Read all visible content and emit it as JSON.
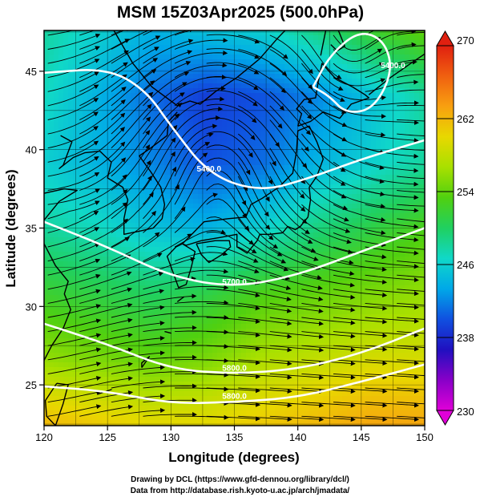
{
  "chart_data": {
    "type": "heatmap",
    "title": "MSM 15Z03Apr2025 (500.0hPa)",
    "xlabel": "Longitude (degrees)",
    "ylabel": "Latitude  (degrees)",
    "xlim": [
      120,
      150
    ],
    "ylim": [
      22.4,
      47.6
    ],
    "x_ticks": [
      120,
      125,
      130,
      135,
      140,
      145,
      150
    ],
    "y_ticks": [
      25,
      30,
      35,
      40,
      45
    ],
    "colorbar": {
      "min": 230,
      "max": 270,
      "ticks": [
        230,
        238,
        246,
        254,
        262,
        270
      ],
      "colors": [
        "#e000d8",
        "#8800c8",
        "#2010c0",
        "#1050e0",
        "#00a8e8",
        "#10d8c8",
        "#20d060",
        "#50d010",
        "#a8e000",
        "#e8d800",
        "#f8a010",
        "#f06010",
        "#e02010"
      ]
    },
    "temperature_field_K": [
      [
        262,
        261,
        260,
        260,
        261,
        262,
        263,
        263
      ],
      [
        256,
        255,
        254,
        255,
        257,
        258,
        259,
        259
      ],
      [
        252,
        251,
        250,
        251,
        253,
        254,
        255,
        256
      ],
      [
        248,
        247,
        245,
        244,
        246,
        249,
        251,
        253
      ],
      [
        246,
        244,
        242,
        240,
        241,
        244,
        246,
        248
      ],
      [
        247,
        244,
        241,
        239,
        240,
        242,
        245,
        248
      ],
      [
        248,
        246,
        244,
        245,
        246,
        249,
        252,
        254
      ]
    ],
    "contour_labels": [
      "5400.0",
      "5700.0",
      "5800.0"
    ],
    "contours": [
      {
        "label": "5800.0",
        "points": [
          [
            120,
            24.9
          ],
          [
            125,
            24.6
          ],
          [
            130,
            23.8
          ],
          [
            135,
            23.9
          ],
          [
            140,
            24.2
          ],
          [
            145,
            25.2
          ],
          [
            150,
            26.3
          ]
        ]
      },
      {
        "label": "5800.0",
        "points": [
          [
            120,
            28.9
          ],
          [
            125,
            27.6
          ],
          [
            130,
            26.0
          ],
          [
            135,
            25.7
          ],
          [
            140,
            26.0
          ],
          [
            145,
            27.0
          ],
          [
            150,
            28.6
          ]
        ]
      },
      {
        "label": "5700.0",
        "points": [
          [
            120,
            35.4
          ],
          [
            125,
            33.8
          ],
          [
            130,
            31.9
          ],
          [
            135,
            31.2
          ],
          [
            140,
            32.0
          ],
          [
            145,
            33.5
          ],
          [
            150,
            35.0
          ]
        ]
      },
      {
        "label": "5400.0",
        "points": [
          [
            120,
            44.9
          ],
          [
            125,
            45.2
          ],
          [
            128,
            43.8
          ],
          [
            130,
            41.5
          ],
          [
            133,
            38.4
          ],
          [
            137,
            37.3
          ],
          [
            141,
            38.2
          ],
          [
            145,
            39.4
          ],
          [
            150,
            40.6
          ]
        ]
      },
      {
        "label": "5400.0",
        "points": [
          [
            141.2,
            44.0
          ],
          [
            142.5,
            46.0
          ],
          [
            144.8,
            47.6
          ],
          [
            146.8,
            47.0
          ],
          [
            147.5,
            45.0
          ],
          [
            146.0,
            42.6
          ],
          [
            143.8,
            42.3
          ],
          [
            142.5,
            43.4
          ],
          [
            141.2,
            44.0
          ]
        ]
      }
    ]
  },
  "credits": {
    "line1": "Drawing by DCL (https://www.gfd-dennou.org/library/dcl/)",
    "line2": "Data from http://database.rish.kyoto-u.ac.jp/arch/jmadata/"
  }
}
